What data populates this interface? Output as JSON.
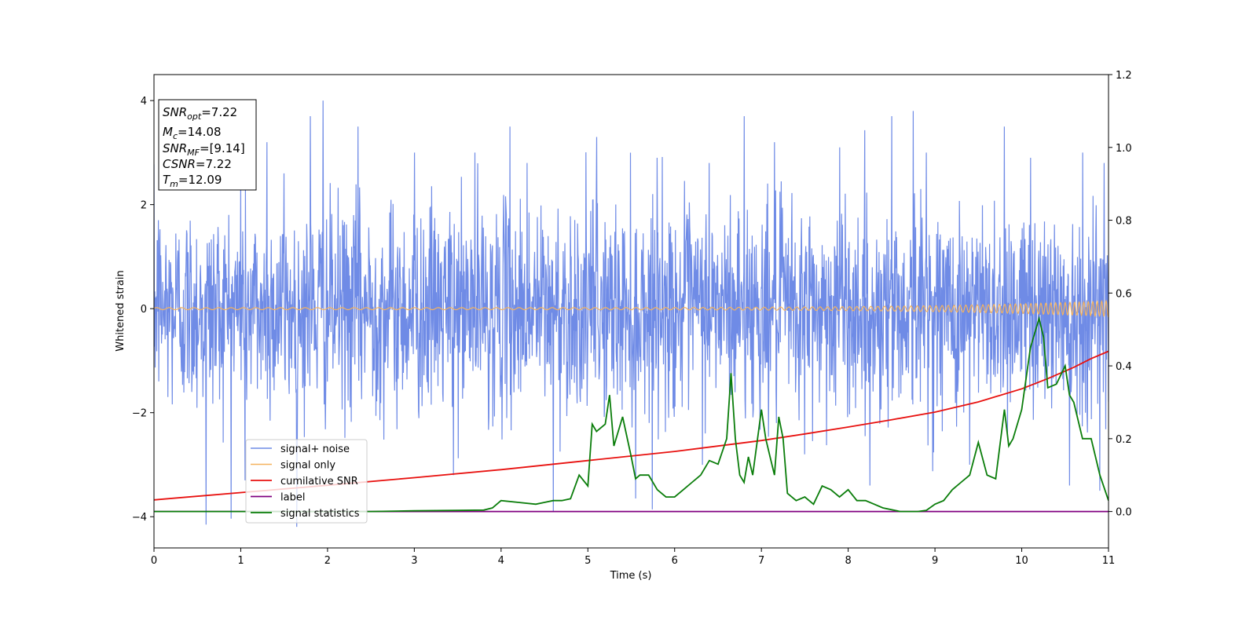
{
  "chart_data": {
    "type": "line",
    "xlabel": "Time (s)",
    "ylabel": "Whitened strain",
    "xlim": [
      0,
      11
    ],
    "ylim_left": [
      -4.6,
      4.5
    ],
    "ylim_right": [
      -0.1,
      1.2
    ],
    "x_ticks": [
      "0",
      "1",
      "2",
      "3",
      "4",
      "5",
      "6",
      "7",
      "8",
      "9",
      "10",
      "11"
    ],
    "y_left_ticks": [
      "4",
      "2",
      "0",
      "−2",
      "−4"
    ],
    "y_right_ticks": [
      "1.2",
      "1.0",
      "0.8",
      "0.6",
      "0.4",
      "0.2",
      "0.0"
    ],
    "legend_position": "lower left",
    "info_box": {
      "position": "top-left",
      "lines": [
        {
          "base": "SNR",
          "sub": "opt",
          "rest": "=7.22"
        },
        {
          "base": "M",
          "sub": "c",
          "rest": "=14.08"
        },
        {
          "base": "SNR",
          "sub": "MF",
          "rest": "=[9.14]"
        },
        {
          "base": "CSNR",
          "sub": "",
          "rest": "=7.22"
        },
        {
          "base": "T",
          "sub": "m",
          "rest": "=12.09"
        }
      ]
    },
    "series": [
      {
        "name": "signal+ noise",
        "color": "#6f8be6",
        "axis": "left",
        "kind": "gaussian_noise",
        "std": 1.0,
        "peak_points": [
          [
            0.05,
            1.7
          ],
          [
            0.6,
            -4.15
          ],
          [
            1.0,
            2.4
          ],
          [
            1.05,
            -3.3
          ],
          [
            1.3,
            3.2
          ],
          [
            1.5,
            2.6
          ],
          [
            1.65,
            -3.0
          ],
          [
            1.8,
            3.7
          ],
          [
            1.95,
            4.0
          ],
          [
            2.35,
            3.5
          ],
          [
            3.0,
            3.0
          ],
          [
            3.45,
            -3.2
          ],
          [
            3.7,
            3.0
          ],
          [
            4.1,
            3.5
          ],
          [
            4.3,
            2.8
          ],
          [
            4.6,
            -3.9
          ],
          [
            5.1,
            3.3
          ],
          [
            5.55,
            -3.65
          ],
          [
            5.8,
            2.9
          ],
          [
            6.4,
            2.8
          ],
          [
            6.8,
            3.7
          ],
          [
            7.15,
            3.2
          ],
          [
            7.5,
            -2.8
          ],
          [
            7.9,
            3.1
          ],
          [
            8.25,
            -3.4
          ],
          [
            8.5,
            3.7
          ],
          [
            8.75,
            3.8
          ],
          [
            8.9,
            3.0
          ],
          [
            9.4,
            -3.0
          ],
          [
            9.8,
            3.5
          ],
          [
            10.1,
            2.9
          ],
          [
            10.55,
            -3.4
          ],
          [
            10.7,
            3.0
          ],
          [
            10.9,
            -3.5
          ],
          [
            10.95,
            2.8
          ]
        ]
      },
      {
        "name": "signal only",
        "color": "#f5b35e",
        "axis": "left",
        "kind": "chirp",
        "amplitude_start": 0.02,
        "amplitude_end": 0.15,
        "freq_start_hz": 7,
        "freq_end_hz": 20
      },
      {
        "name": "cumilative SNR",
        "color": "#e8110f",
        "axis": "right",
        "kind": "line",
        "x": [
          0,
          1,
          2,
          3,
          4,
          5,
          6,
          7,
          7.5,
          8,
          8.5,
          9,
          9.5,
          10,
          10.3,
          10.6,
          10.8,
          11
        ],
        "y": [
          0.032,
          0.052,
          0.072,
          0.093,
          0.115,
          0.14,
          0.165,
          0.195,
          0.213,
          0.232,
          0.252,
          0.273,
          0.301,
          0.337,
          0.365,
          0.396,
          0.42,
          0.44
        ]
      },
      {
        "name": "label",
        "color": "#800080",
        "axis": "right",
        "kind": "line",
        "x": [
          0,
          11
        ],
        "y": [
          0.0,
          0.0
        ]
      },
      {
        "name": "signal statistics",
        "color": "#0a7d0a",
        "axis": "right",
        "kind": "line",
        "x": [
          0,
          0.5,
          1,
          1.5,
          2,
          2.5,
          3,
          3.5,
          3.8,
          3.9,
          4.0,
          4.2,
          4.4,
          4.5,
          4.6,
          4.7,
          4.8,
          4.9,
          5.0,
          5.05,
          5.1,
          5.2,
          5.25,
          5.3,
          5.4,
          5.5,
          5.55,
          5.6,
          5.7,
          5.8,
          5.9,
          6.0,
          6.1,
          6.2,
          6.3,
          6.4,
          6.5,
          6.6,
          6.65,
          6.7,
          6.75,
          6.8,
          6.85,
          6.9,
          7.0,
          7.05,
          7.1,
          7.15,
          7.2,
          7.25,
          7.3,
          7.4,
          7.5,
          7.6,
          7.7,
          7.8,
          7.9,
          8.0,
          8.1,
          8.2,
          8.3,
          8.4,
          8.6,
          8.8,
          8.9,
          9.0,
          9.1,
          9.2,
          9.3,
          9.4,
          9.5,
          9.6,
          9.7,
          9.8,
          9.85,
          9.9,
          10.0,
          10.1,
          10.2,
          10.25,
          10.3,
          10.4,
          10.5,
          10.55,
          10.6,
          10.7,
          10.8,
          10.9,
          11.0
        ],
        "y": [
          0.0,
          0.0,
          0.0,
          0.0,
          0.0,
          0.0,
          0.002,
          0.003,
          0.004,
          0.01,
          0.03,
          0.025,
          0.02,
          0.025,
          0.03,
          0.03,
          0.035,
          0.1,
          0.07,
          0.24,
          0.22,
          0.24,
          0.32,
          0.18,
          0.26,
          0.15,
          0.09,
          0.1,
          0.1,
          0.06,
          0.04,
          0.04,
          0.06,
          0.08,
          0.1,
          0.14,
          0.13,
          0.2,
          0.38,
          0.2,
          0.1,
          0.08,
          0.15,
          0.1,
          0.28,
          0.2,
          0.15,
          0.1,
          0.26,
          0.2,
          0.05,
          0.03,
          0.04,
          0.02,
          0.07,
          0.06,
          0.04,
          0.06,
          0.03,
          0.03,
          0.02,
          0.01,
          0.0,
          0.0,
          0.003,
          0.02,
          0.03,
          0.06,
          0.08,
          0.1,
          0.19,
          0.1,
          0.09,
          0.28,
          0.18,
          0.2,
          0.28,
          0.45,
          0.53,
          0.48,
          0.34,
          0.35,
          0.4,
          0.32,
          0.3,
          0.2,
          0.2,
          0.1,
          0.03
        ]
      }
    ]
  }
}
